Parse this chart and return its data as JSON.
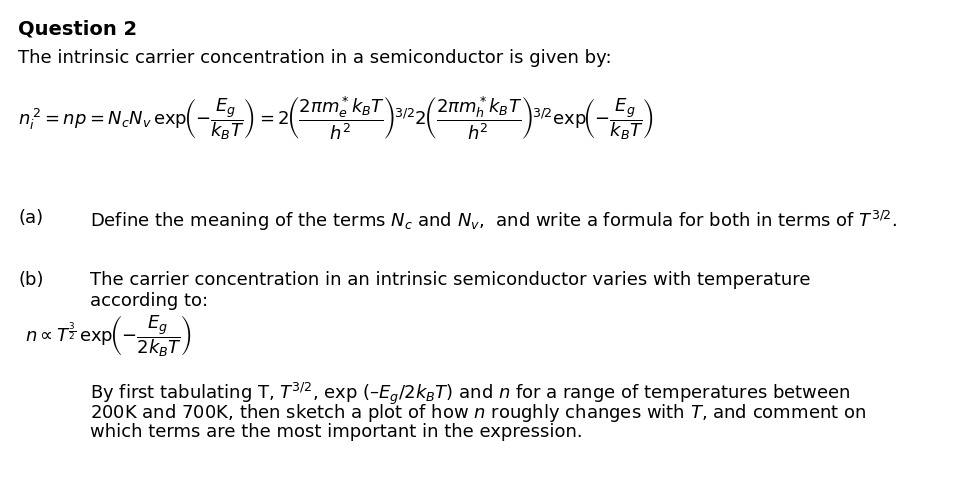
{
  "background_color": "#ffffff",
  "title": "Question 2",
  "title_fontsize": 14,
  "intro_text": "The intrinsic carrier concentration in a semiconductor is given by:",
  "text_fontsize": 13,
  "eq_fontsize": 13,
  "label_fontsize": 13,
  "part_a_text": "Define the meaning of the terms $N_c$ and $N_v$,  and write a formula for both in terms of $T^{3/2}$.",
  "part_b_text1": "The carrier concentration in an intrinsic semiconductor varies with temperature",
  "part_b_text2": "according to:",
  "part_b_desc1": "By first tabulating T, $T^{3/2}$, exp (–$E_g/2k_BT$) and $n$ for a range of temperatures between",
  "part_b_desc2": "200K and 700K, then sketch a plot of how $n$ roughly changes with $T$, and comment on",
  "part_b_desc3": "which terms are the most important in the expression."
}
